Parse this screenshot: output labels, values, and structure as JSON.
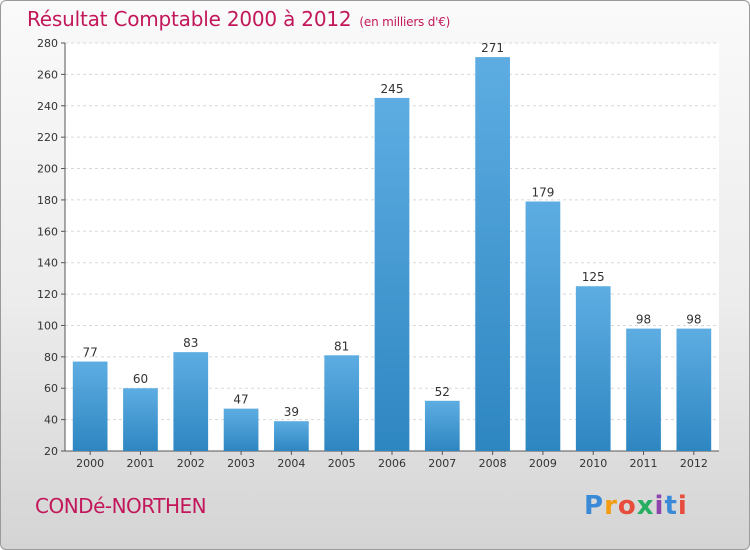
{
  "title": "Résultat Comptable 2000 à 2012",
  "unit": "(en milliers d'€)",
  "commune": "CONDé-NORTHEN",
  "logo": {
    "text": "Proxiti",
    "letters": [
      "P",
      "r",
      "o",
      "x",
      "i",
      "t",
      "i"
    ],
    "colors": [
      "#3a8ad8",
      "#f39c12",
      "#e74c3c",
      "#27ae60",
      "#8e44ad",
      "#3a8ad8",
      "#e74c3c"
    ]
  },
  "colors": {
    "accent": "#c2185b",
    "bar_light": "#5dade2",
    "bar_dark": "#2e86c1"
  },
  "chart_data": {
    "type": "bar",
    "title": "Résultat Comptable 2000 à 2012",
    "subtitle": "(en milliers d'€)",
    "categories": [
      "2000",
      "2001",
      "2002",
      "2003",
      "2004",
      "2005",
      "2006",
      "2007",
      "2008",
      "2009",
      "2010",
      "2011",
      "2012"
    ],
    "values": [
      77,
      60,
      83,
      47,
      39,
      81,
      245,
      52,
      271,
      179,
      125,
      98,
      98
    ],
    "ylim": [
      20,
      280
    ],
    "yticks": [
      20,
      40,
      60,
      80,
      100,
      120,
      140,
      160,
      180,
      200,
      220,
      240,
      260,
      280
    ],
    "grid": true,
    "xlabel": "",
    "ylabel": ""
  }
}
